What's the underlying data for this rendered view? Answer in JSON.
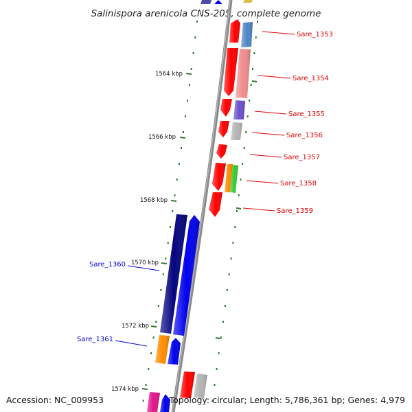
{
  "title": "Salinispora arenicola CNS-205, complete genome",
  "footer": {
    "accession": "Accession: NC_009953",
    "summary": "Topology: circular; Length: 5,786,361 bp; Genes: 4,979"
  },
  "scale_ticks": [
    {
      "kbp": 1564,
      "label": "1564 kbp"
    },
    {
      "kbp": 1566,
      "label": "1566 kbp"
    },
    {
      "kbp": 1568,
      "label": "1568 kbp"
    },
    {
      "kbp": 1570,
      "label": "1570 kbp"
    },
    {
      "kbp": 1572,
      "label": "1572 kbp"
    },
    {
      "kbp": 1574,
      "label": "1574 kbp"
    }
  ],
  "gene_labels": {
    "forward": [
      "Sare_1353",
      "Sare_1354",
      "Sare_1355",
      "Sare_1356",
      "Sare_1357",
      "Sare_1358",
      "Sare_1359"
    ],
    "reverse": [
      "Sare_1360",
      "Sare_1361"
    ]
  },
  "colors": {
    "forward_label": "#dd0000",
    "reverse_label": "#0000cc",
    "backbone": "#888888",
    "tick_marks": "#2a7a2a"
  }
}
